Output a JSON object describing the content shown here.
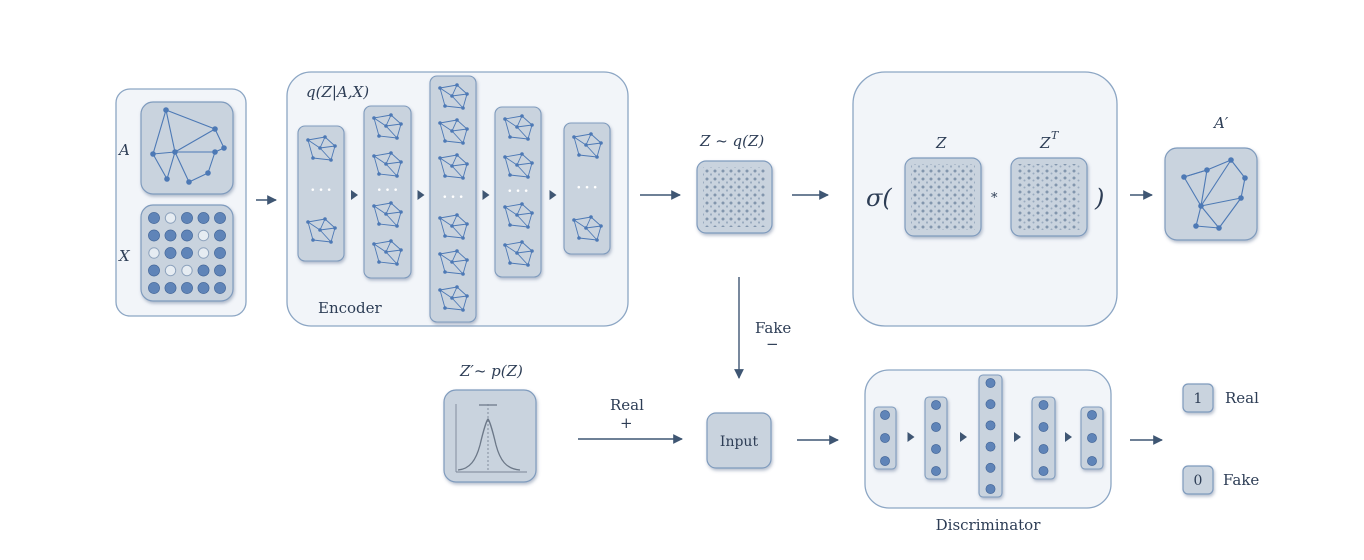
{
  "labels": {
    "A": "A",
    "X": "X",
    "q_posterior": "q(Z|A,X)",
    "encoder": "Encoder",
    "z_sample": "Z ~ q(Z)",
    "sigma_open": "σ(",
    "z": "Z",
    "z_transpose": "Z",
    "transpose_sup": "T",
    "multiply": "*",
    "close_paren": ")",
    "a_prime": "A′",
    "fake_arrow": "Fake",
    "minus": "−",
    "z_prior": "Z′~ p(Z)",
    "real_arrow": "Real",
    "plus": "+",
    "input": "Input",
    "discriminator": "Discriminator",
    "out_one": "1",
    "out_real": "Real",
    "out_zero": "0",
    "out_fake": "Fake",
    "ellipsis": "• • •"
  },
  "colors": {
    "panel_fill": "#f2f5f9",
    "panel_stroke": "#8ca6c4",
    "box_fill": "#c9d3de",
    "box_stroke": "#7f9bbd",
    "node": "#4d79b5",
    "edge": "#4d79b5",
    "arrow": "#3f5673",
    "text": "#2d3d55"
  }
}
